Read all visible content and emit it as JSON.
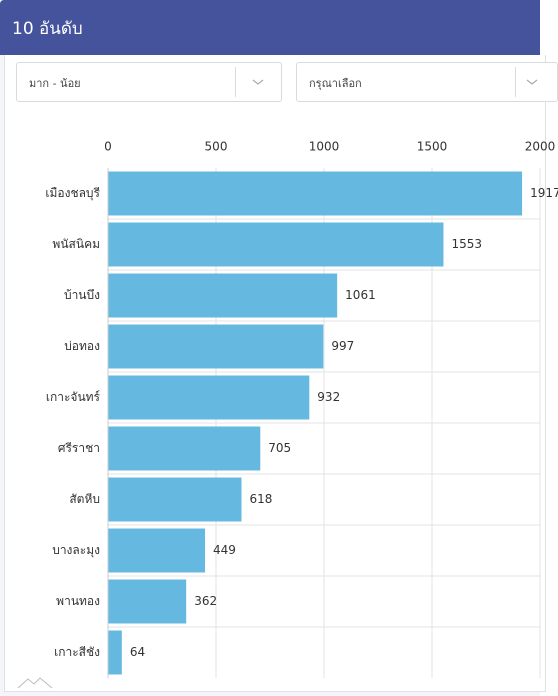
{
  "header": {
    "title": "10 อันดับ"
  },
  "filters": {
    "sort": "มาก - น้อย",
    "select": "กรุณาเลือก"
  },
  "chart_data": {
    "type": "bar",
    "orientation": "horizontal",
    "categories": [
      "เมืองชลบุรี",
      "พนัสนิคม",
      "บ้านบึง",
      "บ่อทอง",
      "เกาะจันทร์",
      "ศรีราชา",
      "สัตหีบ",
      "บางละมุง",
      "พานทอง",
      "เกาะสีชัง"
    ],
    "values": [
      1917,
      1553,
      1061,
      997,
      932,
      705,
      618,
      449,
      362,
      64
    ],
    "color": "#65b8e0",
    "xlim": [
      0,
      2000
    ],
    "xticks": [
      0,
      500,
      1000,
      1500,
      2000
    ],
    "grid": true
  }
}
